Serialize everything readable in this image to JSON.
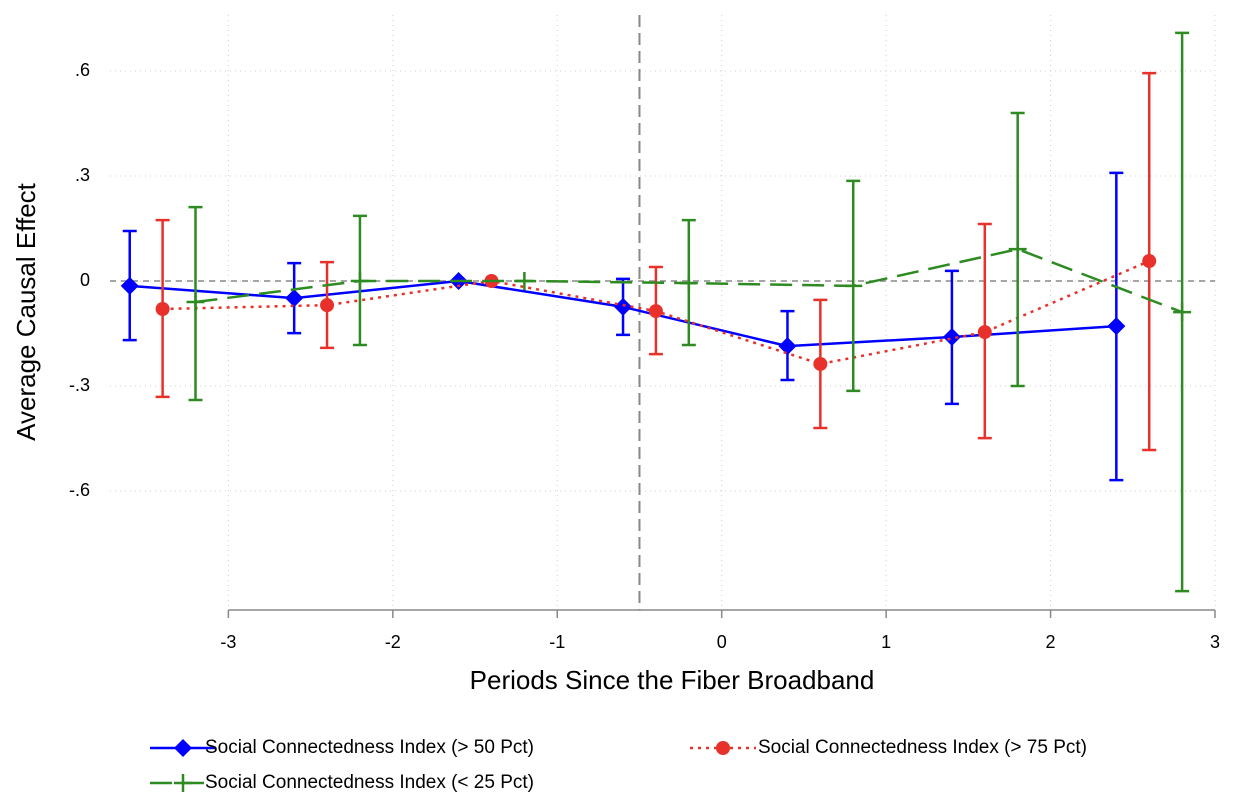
{
  "chart_data": {
    "type": "errorbar-line",
    "x_label": "Periods Since the Fiber Broadband",
    "y_label": "Average Causal Effect",
    "xlim": [
      -3.72,
      3
    ],
    "xticks": [
      -3,
      -2,
      -1,
      0,
      1,
      2,
      3
    ],
    "ylim": [
      -0.94,
      0.76
    ],
    "yticks": [
      {
        "value": 0.6,
        "label": ".6"
      },
      {
        "value": 0.3,
        "label": ".3"
      },
      0,
      {
        "value": -0.3,
        "label": "-.3"
      },
      {
        "value": -0.6,
        "label": "-.6"
      }
    ],
    "grid": true,
    "hline": 0,
    "vline": -0.5,
    "legend": "bottom",
    "series": [
      {
        "name": "Social Connectedness Index (> 50 Pct)",
        "color": "#0000ff",
        "marker": "diamond",
        "dash": "solid",
        "x": [
          -3.6,
          -2.6,
          -1.6,
          -0.6,
          0.4,
          1.4,
          2.4
        ],
        "values": [
          -0.014,
          -0.049,
          0,
          -0.074,
          -0.186,
          -0.16,
          -0.129
        ],
        "lower": [
          -0.169,
          -0.149,
          null,
          -0.154,
          -0.283,
          -0.351,
          -0.569
        ],
        "upper": [
          0.143,
          0.051,
          null,
          0.006,
          -0.086,
          0.029,
          0.309
        ]
      },
      {
        "name": "Social Connectedness Index (> 75 Pct)",
        "color": "#e8312a",
        "marker": "circle",
        "dash": "dot",
        "x": [
          -3.4,
          -2.4,
          -1.4,
          -0.4,
          0.6,
          1.6,
          2.6
        ],
        "values": [
          -0.08,
          -0.069,
          0,
          -0.086,
          -0.237,
          -0.146,
          0.057
        ],
        "lower": [
          -0.331,
          -0.191,
          null,
          -0.209,
          -0.42,
          -0.449,
          -0.483
        ],
        "upper": [
          0.174,
          0.054,
          null,
          0.04,
          -0.054,
          0.163,
          0.594
        ]
      },
      {
        "name": "Social Connectedness Index (< 25 Pct)",
        "color": "#2e8b22",
        "marker": "plus",
        "dash": "dash",
        "x": [
          -3.2,
          -2.2,
          -1.2,
          -0.2,
          0.8,
          1.8,
          2.8
        ],
        "values": [
          -0.06,
          0,
          0,
          -0.006,
          -0.014,
          0.091,
          -0.089
        ],
        "lower": [
          -0.34,
          -0.183,
          null,
          -0.183,
          -0.314,
          -0.3,
          -0.886
        ],
        "upper": [
          0.211,
          0.186,
          null,
          0.174,
          0.286,
          0.48,
          0.709
        ]
      }
    ]
  }
}
